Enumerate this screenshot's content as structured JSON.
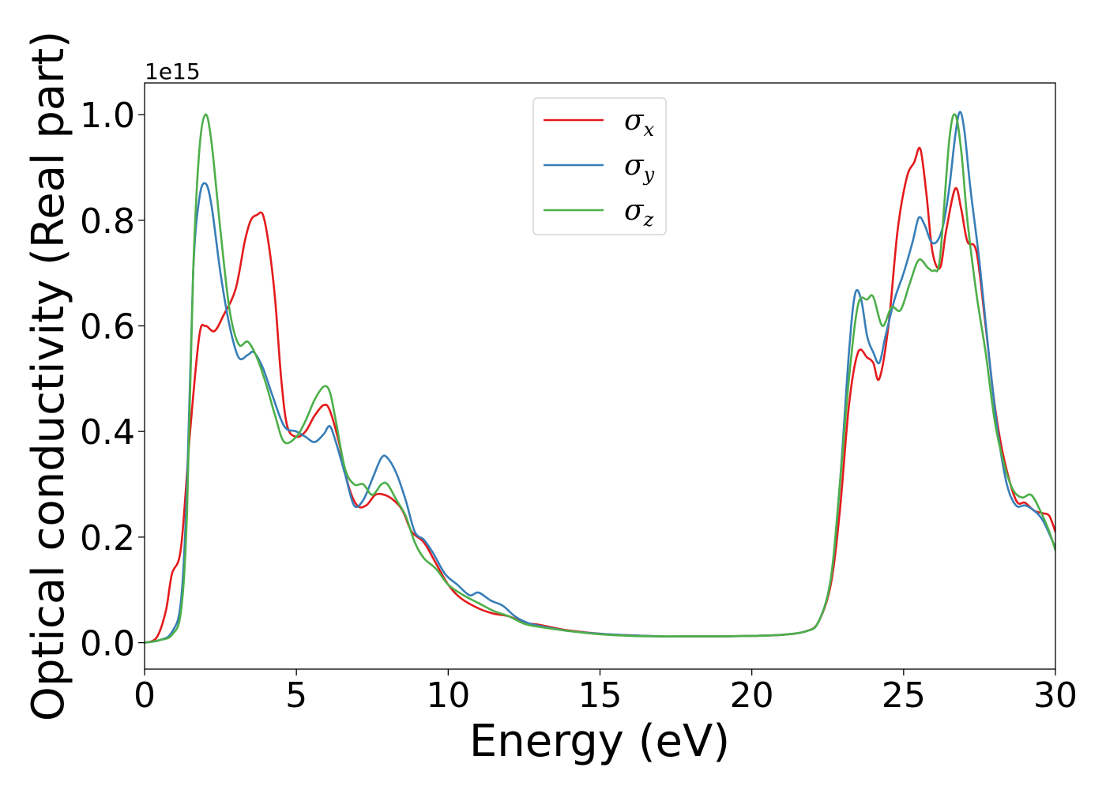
{
  "chart_data": {
    "type": "line",
    "xlabel": "Energy (eV)",
    "ylabel": "Optical conductivity (Real part)",
    "y_offset_label": "1e15",
    "xlim": [
      0,
      30
    ],
    "ylim": [
      -0.05,
      1.06
    ],
    "xticks": [
      0,
      5,
      10,
      15,
      20,
      25,
      30
    ],
    "xtick_labels": [
      "0",
      "5",
      "10",
      "15",
      "20",
      "25",
      "30"
    ],
    "yticks": [
      0.0,
      0.2,
      0.4,
      0.6,
      0.8,
      1.0
    ],
    "ytick_labels": [
      "0.0",
      "0.2",
      "0.4",
      "0.6",
      "0.8",
      "1.0"
    ],
    "grid": false,
    "legend_position": "top-center",
    "series": [
      {
        "name": "σx",
        "legend_symbol": "σ",
        "legend_sub": "x",
        "color": "#e41a1c",
        "points": [
          [
            0,
            0
          ],
          [
            0.4,
            0.01
          ],
          [
            0.7,
            0.06
          ],
          [
            0.9,
            0.13
          ],
          [
            1.2,
            0.18
          ],
          [
            1.5,
            0.4
          ],
          [
            1.8,
            0.58
          ],
          [
            2.0,
            0.6
          ],
          [
            2.3,
            0.59
          ],
          [
            2.6,
            0.62
          ],
          [
            3.0,
            0.67
          ],
          [
            3.3,
            0.76
          ],
          [
            3.5,
            0.8
          ],
          [
            3.7,
            0.81
          ],
          [
            3.9,
            0.81
          ],
          [
            4.1,
            0.75
          ],
          [
            4.3,
            0.65
          ],
          [
            4.5,
            0.5
          ],
          [
            4.7,
            0.41
          ],
          [
            5.0,
            0.39
          ],
          [
            5.3,
            0.4
          ],
          [
            5.6,
            0.43
          ],
          [
            5.9,
            0.45
          ],
          [
            6.1,
            0.44
          ],
          [
            6.4,
            0.38
          ],
          [
            6.7,
            0.3
          ],
          [
            7.0,
            0.26
          ],
          [
            7.3,
            0.26
          ],
          [
            7.6,
            0.28
          ],
          [
            7.9,
            0.28
          ],
          [
            8.2,
            0.27
          ],
          [
            8.5,
            0.25
          ],
          [
            8.8,
            0.21
          ],
          [
            9.2,
            0.19
          ],
          [
            9.6,
            0.15
          ],
          [
            10.0,
            0.11
          ],
          [
            10.4,
            0.085
          ],
          [
            11.0,
            0.065
          ],
          [
            11.5,
            0.055
          ],
          [
            12.0,
            0.05
          ],
          [
            12.5,
            0.038
          ],
          [
            13.0,
            0.034
          ],
          [
            13.5,
            0.028
          ],
          [
            14.0,
            0.023
          ],
          [
            15.0,
            0.017
          ],
          [
            16.0,
            0.014
          ],
          [
            17.0,
            0.012
          ],
          [
            18.0,
            0.012
          ],
          [
            19.0,
            0.012
          ],
          [
            20.0,
            0.013
          ],
          [
            21.0,
            0.015
          ],
          [
            21.8,
            0.022
          ],
          [
            22.2,
            0.04
          ],
          [
            22.6,
            0.11
          ],
          [
            22.9,
            0.25
          ],
          [
            23.2,
            0.45
          ],
          [
            23.5,
            0.55
          ],
          [
            23.8,
            0.54
          ],
          [
            24.0,
            0.53
          ],
          [
            24.2,
            0.5
          ],
          [
            24.5,
            0.6
          ],
          [
            24.8,
            0.78
          ],
          [
            25.1,
            0.88
          ],
          [
            25.35,
            0.91
          ],
          [
            25.55,
            0.935
          ],
          [
            25.75,
            0.85
          ],
          [
            25.95,
            0.74
          ],
          [
            26.2,
            0.71
          ],
          [
            26.4,
            0.78
          ],
          [
            26.7,
            0.86
          ],
          [
            26.9,
            0.82
          ],
          [
            27.1,
            0.76
          ],
          [
            27.4,
            0.74
          ],
          [
            27.7,
            0.6
          ],
          [
            28.0,
            0.45
          ],
          [
            28.3,
            0.35
          ],
          [
            28.7,
            0.27
          ],
          [
            29.0,
            0.265
          ],
          [
            29.3,
            0.25
          ],
          [
            29.6,
            0.245
          ],
          [
            29.8,
            0.24
          ],
          [
            30.0,
            0.21
          ]
        ]
      },
      {
        "name": "σy",
        "legend_symbol": "σ",
        "legend_sub": "y",
        "color": "#377eb8",
        "points": [
          [
            0,
            0
          ],
          [
            0.5,
            0.005
          ],
          [
            0.9,
            0.02
          ],
          [
            1.2,
            0.08
          ],
          [
            1.4,
            0.3
          ],
          [
            1.6,
            0.7
          ],
          [
            1.8,
            0.84
          ],
          [
            2.0,
            0.87
          ],
          [
            2.2,
            0.83
          ],
          [
            2.5,
            0.7
          ],
          [
            2.8,
            0.6
          ],
          [
            3.1,
            0.54
          ],
          [
            3.4,
            0.545
          ],
          [
            3.6,
            0.55
          ],
          [
            3.9,
            0.52
          ],
          [
            4.2,
            0.47
          ],
          [
            4.6,
            0.41
          ],
          [
            5.0,
            0.4
          ],
          [
            5.3,
            0.39
          ],
          [
            5.6,
            0.38
          ],
          [
            5.9,
            0.395
          ],
          [
            6.1,
            0.41
          ],
          [
            6.3,
            0.38
          ],
          [
            6.6,
            0.32
          ],
          [
            6.9,
            0.26
          ],
          [
            7.2,
            0.27
          ],
          [
            7.5,
            0.31
          ],
          [
            7.8,
            0.35
          ],
          [
            8.0,
            0.35
          ],
          [
            8.3,
            0.32
          ],
          [
            8.6,
            0.27
          ],
          [
            8.9,
            0.21
          ],
          [
            9.2,
            0.195
          ],
          [
            9.5,
            0.17
          ],
          [
            9.9,
            0.13
          ],
          [
            10.3,
            0.11
          ],
          [
            10.7,
            0.09
          ],
          [
            11.0,
            0.095
          ],
          [
            11.4,
            0.08
          ],
          [
            11.8,
            0.07
          ],
          [
            12.2,
            0.05
          ],
          [
            12.6,
            0.038
          ],
          [
            13.0,
            0.032
          ],
          [
            14.0,
            0.022
          ],
          [
            15.0,
            0.017
          ],
          [
            16.0,
            0.014
          ],
          [
            17.0,
            0.012
          ],
          [
            18.0,
            0.012
          ],
          [
            19.0,
            0.012
          ],
          [
            20.0,
            0.013
          ],
          [
            21.0,
            0.015
          ],
          [
            21.8,
            0.022
          ],
          [
            22.2,
            0.04
          ],
          [
            22.6,
            0.12
          ],
          [
            22.9,
            0.3
          ],
          [
            23.2,
            0.55
          ],
          [
            23.4,
            0.66
          ],
          [
            23.6,
            0.65
          ],
          [
            23.8,
            0.58
          ],
          [
            24.0,
            0.55
          ],
          [
            24.2,
            0.53
          ],
          [
            24.4,
            0.58
          ],
          [
            24.7,
            0.65
          ],
          [
            25.0,
            0.7
          ],
          [
            25.3,
            0.76
          ],
          [
            25.5,
            0.805
          ],
          [
            25.7,
            0.79
          ],
          [
            25.9,
            0.76
          ],
          [
            26.1,
            0.76
          ],
          [
            26.3,
            0.79
          ],
          [
            26.5,
            0.86
          ],
          [
            26.7,
            0.96
          ],
          [
            26.85,
            1.005
          ],
          [
            27.0,
            0.97
          ],
          [
            27.2,
            0.86
          ],
          [
            27.5,
            0.72
          ],
          [
            27.8,
            0.55
          ],
          [
            28.1,
            0.4
          ],
          [
            28.4,
            0.3
          ],
          [
            28.7,
            0.26
          ],
          [
            29.0,
            0.26
          ],
          [
            29.3,
            0.25
          ],
          [
            29.6,
            0.23
          ],
          [
            30.0,
            0.18
          ]
        ]
      },
      {
        "name": "σz",
        "legend_symbol": "σ",
        "legend_sub": "z",
        "color": "#4daf4a",
        "points": [
          [
            0,
            0
          ],
          [
            0.5,
            0.005
          ],
          [
            0.9,
            0.015
          ],
          [
            1.2,
            0.06
          ],
          [
            1.4,
            0.25
          ],
          [
            1.6,
            0.7
          ],
          [
            1.8,
            0.93
          ],
          [
            2.0,
            1.0
          ],
          [
            2.2,
            0.95
          ],
          [
            2.5,
            0.78
          ],
          [
            2.8,
            0.63
          ],
          [
            3.1,
            0.565
          ],
          [
            3.4,
            0.57
          ],
          [
            3.7,
            0.54
          ],
          [
            4.0,
            0.49
          ],
          [
            4.3,
            0.43
          ],
          [
            4.6,
            0.38
          ],
          [
            5.0,
            0.39
          ],
          [
            5.3,
            0.42
          ],
          [
            5.6,
            0.46
          ],
          [
            5.9,
            0.485
          ],
          [
            6.1,
            0.475
          ],
          [
            6.3,
            0.42
          ],
          [
            6.6,
            0.33
          ],
          [
            6.9,
            0.3
          ],
          [
            7.2,
            0.3
          ],
          [
            7.5,
            0.28
          ],
          [
            7.8,
            0.3
          ],
          [
            8.0,
            0.3
          ],
          [
            8.3,
            0.27
          ],
          [
            8.6,
            0.24
          ],
          [
            8.9,
            0.19
          ],
          [
            9.2,
            0.16
          ],
          [
            9.6,
            0.14
          ],
          [
            10.0,
            0.11
          ],
          [
            10.5,
            0.09
          ],
          [
            11.0,
            0.075
          ],
          [
            11.5,
            0.06
          ],
          [
            12.0,
            0.05
          ],
          [
            12.5,
            0.036
          ],
          [
            13.0,
            0.03
          ],
          [
            14.0,
            0.022
          ],
          [
            15.0,
            0.016
          ],
          [
            16.0,
            0.013
          ],
          [
            17.0,
            0.012
          ],
          [
            18.0,
            0.012
          ],
          [
            19.0,
            0.012
          ],
          [
            20.0,
            0.013
          ],
          [
            21.0,
            0.015
          ],
          [
            21.8,
            0.022
          ],
          [
            22.2,
            0.04
          ],
          [
            22.6,
            0.12
          ],
          [
            22.9,
            0.3
          ],
          [
            23.2,
            0.5
          ],
          [
            23.5,
            0.64
          ],
          [
            23.8,
            0.65
          ],
          [
            24.0,
            0.655
          ],
          [
            24.3,
            0.6
          ],
          [
            24.6,
            0.635
          ],
          [
            24.9,
            0.63
          ],
          [
            25.2,
            0.68
          ],
          [
            25.5,
            0.725
          ],
          [
            25.8,
            0.71
          ],
          [
            26.0,
            0.705
          ],
          [
            26.2,
            0.73
          ],
          [
            26.5,
            0.95
          ],
          [
            26.7,
            1.0
          ],
          [
            26.9,
            0.93
          ],
          [
            27.1,
            0.8
          ],
          [
            27.4,
            0.66
          ],
          [
            27.7,
            0.55
          ],
          [
            28.0,
            0.42
          ],
          [
            28.3,
            0.34
          ],
          [
            28.6,
            0.29
          ],
          [
            28.9,
            0.275
          ],
          [
            29.2,
            0.28
          ],
          [
            29.5,
            0.25
          ],
          [
            29.8,
            0.21
          ],
          [
            30.0,
            0.175
          ]
        ]
      }
    ]
  }
}
